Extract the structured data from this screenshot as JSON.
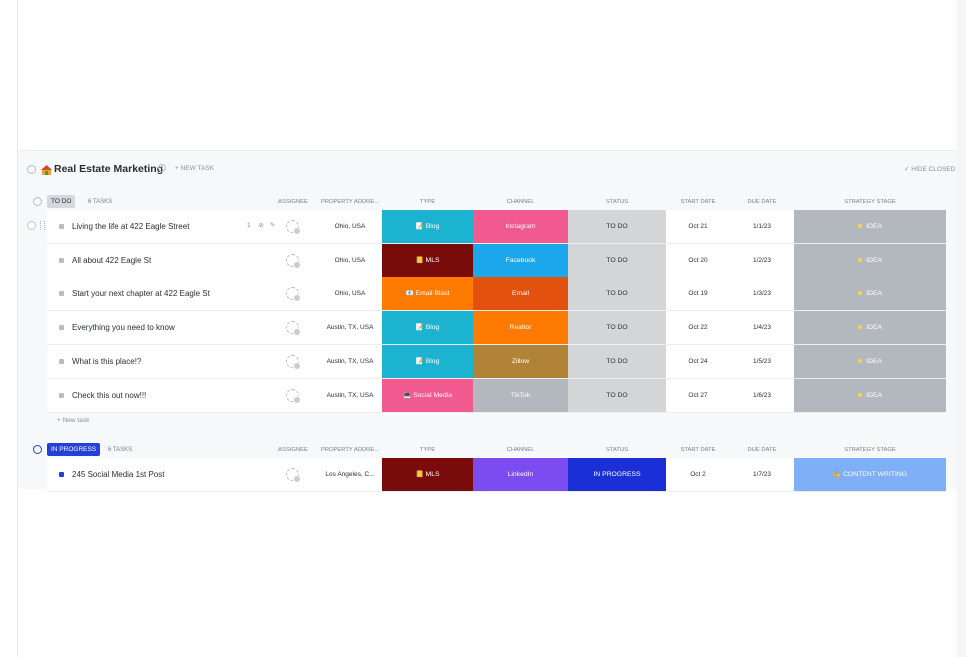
{
  "list": {
    "title": "Real Estate Marketing",
    "new_task": "+ NEW TASK",
    "hide_closed": "✓ HIDE CLOSED",
    "new_task_row": "+ New task",
    "icons": [
      "house-emoji-icon",
      "info-icon",
      "chevron-down-icon",
      "checkmark-icon"
    ]
  },
  "columns": {
    "assignee": "ASSIGNEE",
    "property": "PROPERTY ADDRE...",
    "type": "TYPE",
    "channel": "CHANNEL",
    "status": "STATUS",
    "start_date": "START DATE",
    "due_date": "DUE DATE",
    "strategy": "STRATEGY STAGE"
  },
  "groups": [
    {
      "label": "TO DO",
      "count": "6 TASKS",
      "color": "#d6d8dd",
      "text_color": "#2a2e34",
      "tasks": [
        {
          "name": "Living the life at 422 Eagle Street",
          "extra": "1",
          "address": "Ohio, USA",
          "type": "Blog",
          "type_icon": "📝",
          "type_color": "#1bb3cf",
          "channel": "Instagram",
          "channel_color": "#f05a8e",
          "status": "TO DO",
          "status_color": "#d4d5d7",
          "start": "Oct 21",
          "due": "1/1/23",
          "stage": "IDEA",
          "stage_color": "#b3b8bf"
        },
        {
          "name": "All about 422 Eagle St",
          "address": "Ohio, USA",
          "type": "MLS",
          "type_icon": "📒",
          "type_color": "#7a0b0b",
          "channel": "Facebook",
          "channel_color": "#1aa7ec",
          "status": "TO DO",
          "status_color": "#d4d5d7",
          "start": "Oct 20",
          "due": "1/2/23",
          "stage": "IDEA",
          "stage_color": "#b3b8bf"
        },
        {
          "name": "Start your next chapter at 422 Eagle St",
          "address": "Ohio, USA",
          "type": "Email Blast",
          "type_icon": "📧",
          "type_color": "#ff7a00",
          "channel": "Email",
          "channel_color": "#e2510e",
          "status": "TO DO",
          "status_color": "#d4d5d7",
          "start": "Oct 19",
          "due": "1/3/23",
          "stage": "IDEA",
          "stage_color": "#b3b8bf"
        },
        {
          "name": "Everything you need to know",
          "address": "Austin, TX, USA",
          "type": "Blog",
          "type_icon": "📝",
          "type_color": "#1bb3cf",
          "channel": "Realtor",
          "channel_color": "#ff7a00",
          "status": "TO DO",
          "status_color": "#d4d5d7",
          "start": "Oct 22",
          "due": "1/4/23",
          "stage": "IDEA",
          "stage_color": "#b3b8bf"
        },
        {
          "name": "What is this place!?",
          "address": "Austin, TX, USA",
          "type": "Blog",
          "type_icon": "📝",
          "type_color": "#1bb3cf",
          "channel": "Zillow",
          "channel_color": "#b08336",
          "status": "TO DO",
          "status_color": "#d4d5d7",
          "start": "Oct 24",
          "due": "1/5/23",
          "stage": "IDEA",
          "stage_color": "#b3b8bf"
        },
        {
          "name": "Check this out now!!!",
          "address": "Austin, TX, USA",
          "type": "Social Media",
          "type_icon": "💻",
          "type_color": "#f05a8e",
          "channel": "TikTok",
          "channel_color": "#b3b8bf",
          "status": "TO DO",
          "status_color": "#d4d5d7",
          "start": "Oct 27",
          "due": "1/6/23",
          "stage": "IDEA",
          "stage_color": "#b3b8bf"
        }
      ]
    },
    {
      "label": "IN PROGRESS",
      "count": "6 TASKS",
      "color": "#2340d9",
      "text_color": "#ffffff",
      "tasks": [
        {
          "name": "245 Social Media 1st Post",
          "address": "Los Angeles, C...",
          "type": "MLS",
          "type_icon": "📒",
          "type_color": "#7a0b0b",
          "channel": "LinkedIn",
          "channel_color": "#7b4df0",
          "status": "IN PROGRESS",
          "status_color": "#1b2fd6",
          "start": "Oct 2",
          "due": "1/7/23",
          "stage": "CONTENT WRITING",
          "stage_icon": "✍️",
          "stage_color": "#7fb0f7"
        }
      ]
    }
  ]
}
